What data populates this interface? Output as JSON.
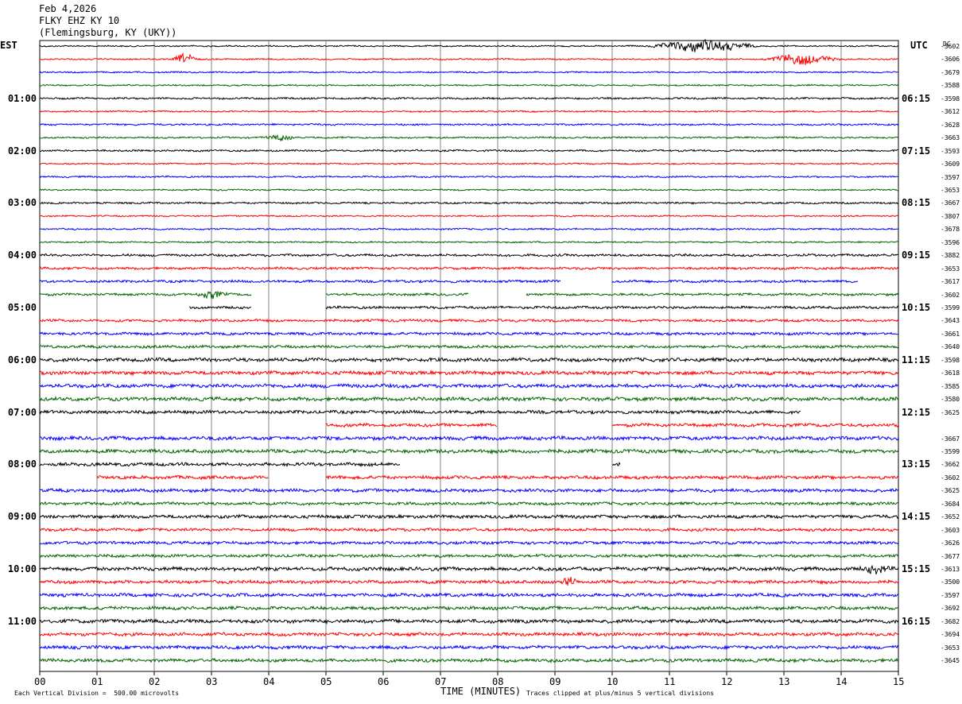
{
  "header": {
    "date": "Feb 4,2026",
    "station": "FLKY EHZ KY 10",
    "location": "(Flemingsburg, KY (UKY))"
  },
  "left_tz": "EST",
  "right_tz": "UTC",
  "dc_label": "DC",
  "footer": {
    "scale": "Each Vertical Division =  500.00 microvolts",
    "xlabel": "TIME (MINUTES)",
    "clip": "Traces clipped at plus/minus 5 vertical divisions"
  },
  "colors": {
    "black": "#000000",
    "red": "#ff0000",
    "blue": "#0000ff",
    "green": "#006400",
    "grid": "#808080"
  },
  "chart_data": {
    "type": "line",
    "title": "FLKY EHZ KY 10",
    "xlabel": "TIME (MINUTES)",
    "x_ticks": [
      "00",
      "01",
      "02",
      "03",
      "04",
      "05",
      "06",
      "07",
      "08",
      "09",
      "10",
      "11",
      "12",
      "13",
      "14",
      "15"
    ],
    "xlim": [
      0,
      15
    ],
    "left_hour_labels": [
      "01:00",
      "02:00",
      "03:00",
      "04:00",
      "05:00",
      "06:00",
      "07:00",
      "08:00",
      "09:00",
      "10:00",
      "11:00"
    ],
    "right_hour_labels": [
      "06:15",
      "07:15",
      "08:15",
      "09:15",
      "10:15",
      "11:15",
      "12:15",
      "13:15",
      "14:15",
      "15:15",
      "16:15"
    ],
    "trace_colors": [
      "black",
      "red",
      "blue",
      "green"
    ],
    "dc_offsets": [
      "-3602",
      "-3606",
      "-3679",
      "-3588",
      "-3598",
      "-3612",
      "-3628",
      "-3663",
      "-3593",
      "-3609",
      "-3597",
      "-3653",
      "-3667",
      "-3807",
      "-3678",
      "-3596",
      "-3882",
      "-3653",
      "-3617",
      "-3602",
      "-3599",
      "-3643",
      "-3661",
      "-3640",
      "-3598",
      "-3618",
      "-3585",
      "-3580",
      "-3625",
      "",
      "-3667",
      "-3599",
      "-3662",
      "-3602",
      "-3625",
      "-3684",
      "-3652",
      "-3603",
      "-3626",
      "-3677",
      "-3613",
      "-3500",
      "-3597",
      "-3692",
      "-3682",
      "-3694",
      "-3653",
      "-3645"
    ],
    "traces": [
      {
        "amp": 0.8,
        "events": [
          {
            "x": 11.6,
            "amp": 7,
            "w": 1.0
          }
        ]
      },
      {
        "amp": 0.8,
        "events": [
          {
            "x": 2.55,
            "amp": 6,
            "w": 0.25
          },
          {
            "x": 13.3,
            "amp": 6,
            "w": 0.7
          }
        ]
      },
      {
        "amp": 0.8
      },
      {
        "amp": 0.8
      },
      {
        "amp": 1.0
      },
      {
        "amp": 0.8
      },
      {
        "amp": 1.0
      },
      {
        "amp": 0.9,
        "events": [
          {
            "x": 4.2,
            "amp": 3,
            "w": 0.3
          }
        ]
      },
      {
        "amp": 1.0
      },
      {
        "amp": 0.8
      },
      {
        "amp": 0.9
      },
      {
        "amp": 0.8
      },
      {
        "amp": 1.0
      },
      {
        "amp": 0.8
      },
      {
        "amp": 0.9
      },
      {
        "amp": 0.8
      },
      {
        "amp": 1.3
      },
      {
        "amp": 1.3
      },
      {
        "amp": 1.4,
        "gaps": [
          [
            9.1,
            10.0
          ],
          [
            14.3,
            15.0
          ]
        ]
      },
      {
        "amp": 1.3,
        "gaps": [
          [
            3.7,
            5.0
          ],
          [
            7.5,
            8.5
          ]
        ],
        "events": [
          {
            "x": 3.0,
            "amp": 4,
            "w": 0.3
          }
        ]
      },
      {
        "amp": 1.4,
        "gaps": [
          [
            0,
            2.6
          ],
          [
            3.7,
            5.0
          ]
        ]
      },
      {
        "amp": 1.4
      },
      {
        "amp": 1.5
      },
      {
        "amp": 1.5
      },
      {
        "amp": 2.0
      },
      {
        "amp": 2.0
      },
      {
        "amp": 2.0
      },
      {
        "amp": 2.0
      },
      {
        "amp": 1.8,
        "gaps": [
          [
            13.3,
            15.0
          ]
        ]
      },
      {
        "amp": 1.8,
        "gaps": [
          [
            0,
            5.0
          ],
          [
            8.0,
            10.0
          ]
        ]
      },
      {
        "amp": 2.0
      },
      {
        "amp": 2.0
      },
      {
        "amp": 1.8,
        "gaps": [
          [
            6.3,
            10.0
          ],
          [
            10.15,
            15.0
          ]
        ]
      },
      {
        "amp": 1.8,
        "gaps": [
          [
            0,
            1.0
          ],
          [
            4.0,
            5.0
          ]
        ]
      },
      {
        "amp": 1.8
      },
      {
        "amp": 1.6
      },
      {
        "amp": 1.8
      },
      {
        "amp": 1.6
      },
      {
        "amp": 1.6
      },
      {
        "amp": 1.6
      },
      {
        "amp": 2.0,
        "events": [
          {
            "x": 14.6,
            "amp": 4,
            "w": 0.3
          }
        ]
      },
      {
        "amp": 1.8,
        "events": [
          {
            "x": 9.25,
            "amp": 6,
            "w": 0.15
          }
        ]
      },
      {
        "amp": 1.8
      },
      {
        "amp": 1.8
      },
      {
        "amp": 2.0
      },
      {
        "amp": 1.8
      },
      {
        "amp": 1.8
      },
      {
        "amp": 1.8
      }
    ]
  }
}
